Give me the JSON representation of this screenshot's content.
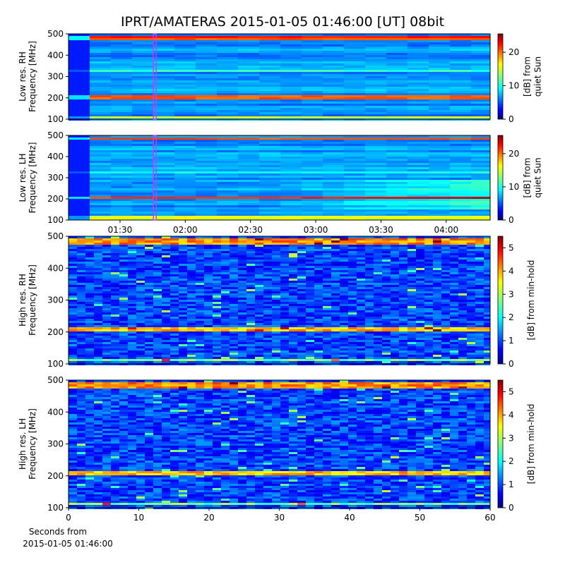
{
  "title": "IPRT/AMATERAS 2015-01-05 01:46:00 [UT]   08bit",
  "chart_data": [
    {
      "type": "heatmap",
      "ylabel": [
        "Low res. RH",
        "Frequency [MHz]"
      ],
      "xlim": [
        66.3,
        260.2
      ],
      "marker": 106,
      "ylim": [
        100,
        500
      ],
      "yticks": [
        100,
        200,
        300,
        400,
        500
      ],
      "colormap": "jet",
      "colorbar": {
        "label": [
          "[dB] from",
          "quiet Sun"
        ],
        "lim": [
          0,
          25.5
        ],
        "ticks": [
          0,
          10,
          20
        ]
      }
    },
    {
      "type": "heatmap",
      "ylabel": [
        "Low res. LH",
        "Frequency [MHz]"
      ],
      "xlim": [
        66.3,
        260.2
      ],
      "marker": 106,
      "xticks": [
        {
          "value": 90,
          "label": "01:30"
        },
        {
          "value": 120,
          "label": "02:00"
        },
        {
          "value": 150,
          "label": "02:30"
        },
        {
          "value": 180,
          "label": "03:00"
        },
        {
          "value": 210,
          "label": "03:30"
        },
        {
          "value": 240,
          "label": "04:00"
        }
      ],
      "ylim": [
        100,
        500
      ],
      "yticks": [
        100,
        200,
        300,
        400,
        500
      ],
      "colormap": "jet",
      "colorbar": {
        "label": [
          "[dB] from",
          "quiet Sun"
        ],
        "lim": [
          0,
          25.5
        ],
        "ticks": [
          0,
          10,
          20
        ]
      }
    },
    {
      "type": "heatmap",
      "ylabel": [
        "High res. RH",
        "Frequency [MHz]"
      ],
      "xlim": [
        0,
        60
      ],
      "ylim": [
        100,
        500
      ],
      "yticks": [
        100,
        200,
        300,
        400,
        500
      ],
      "colormap": "jet",
      "colorbar": {
        "label": [
          "[dB] from min-hold"
        ],
        "lim": [
          0,
          5.5
        ],
        "ticks": [
          0,
          1,
          2,
          3,
          4,
          5
        ]
      }
    },
    {
      "type": "heatmap",
      "ylabel": [
        "High res. LH",
        "Frequency [MHz]"
      ],
      "xlim": [
        0,
        60
      ],
      "xticks": [
        0,
        10,
        20,
        30,
        40,
        50,
        60
      ],
      "xlabel": [
        "Seconds from",
        "2015-01-05 01:46:00"
      ],
      "ylim": [
        100,
        500
      ],
      "yticks": [
        100,
        200,
        300,
        400,
        500
      ],
      "colormap": "jet",
      "colorbar": {
        "label": [
          "[dB] from min-hold"
        ],
        "lim": [
          0,
          5.5
        ],
        "ticks": [
          0,
          1,
          2,
          3,
          4,
          5
        ]
      }
    }
  ]
}
